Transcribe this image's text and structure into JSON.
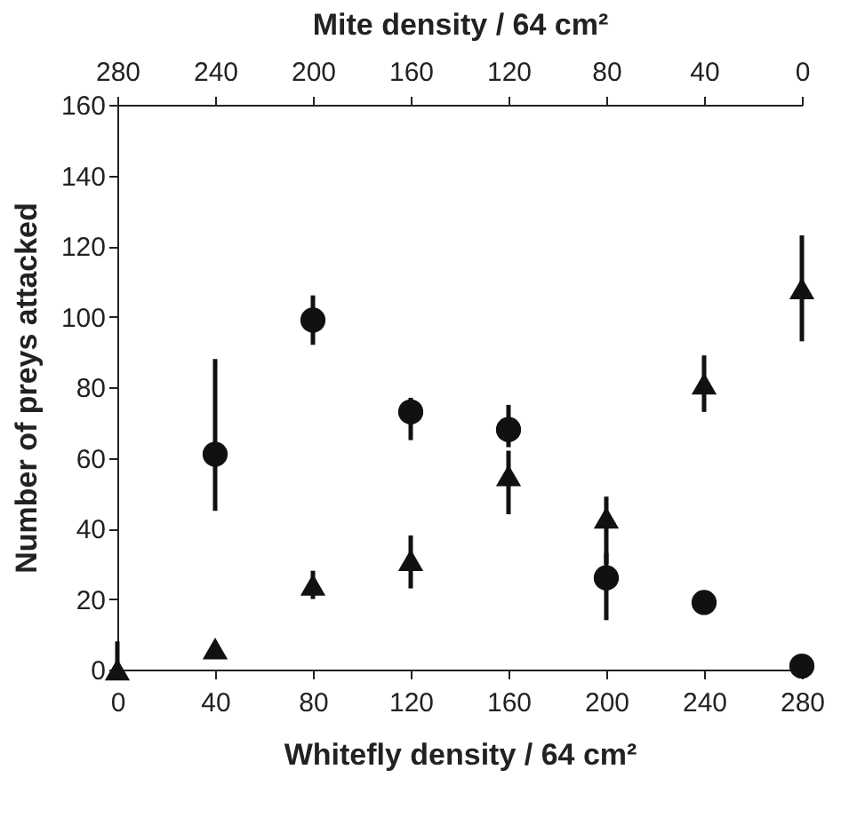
{
  "chart_data": {
    "type": "scatter",
    "xlabel": "Whitefly density / 64 cm²",
    "ylabel": "Number of preys attacked",
    "x2label": "Mite density / 64 cm²",
    "x": [
      0,
      40,
      80,
      120,
      160,
      200,
      240,
      280
    ],
    "series": [
      {
        "color": "#111111",
        "marker": "circle",
        "x": [
          40,
          80,
          120,
          160,
          200,
          240,
          280
        ],
        "values": [
          61,
          99,
          73,
          68,
          26,
          19,
          1
        ],
        "errors": [
          [
            45,
            88
          ],
          [
            92,
            106
          ],
          [
            65,
            77
          ],
          [
            63,
            75
          ],
          [
            14,
            33
          ],
          null,
          null
        ]
      },
      {
        "color": "#111111",
        "marker": "triangle",
        "values": [
          0,
          6,
          24,
          31,
          55,
          43,
          81,
          108
        ],
        "errors": [
          [
            0,
            8
          ],
          null,
          [
            20,
            28
          ],
          [
            23,
            38
          ],
          [
            44,
            62
          ],
          [
            30,
            49
          ],
          [
            73,
            89
          ],
          [
            93,
            123
          ]
        ]
      }
    ],
    "xlim": [
      0,
      280
    ],
    "xticks": [
      0,
      40,
      80,
      120,
      160,
      200,
      240,
      280
    ],
    "x2lim": [
      280,
      0
    ],
    "x2ticks": [
      280,
      240,
      200,
      160,
      120,
      80,
      40,
      0
    ],
    "ylim": [
      0,
      160
    ],
    "yticks": [
      0,
      20,
      40,
      60,
      80,
      100,
      120,
      140,
      160
    ],
    "grid": false
  }
}
